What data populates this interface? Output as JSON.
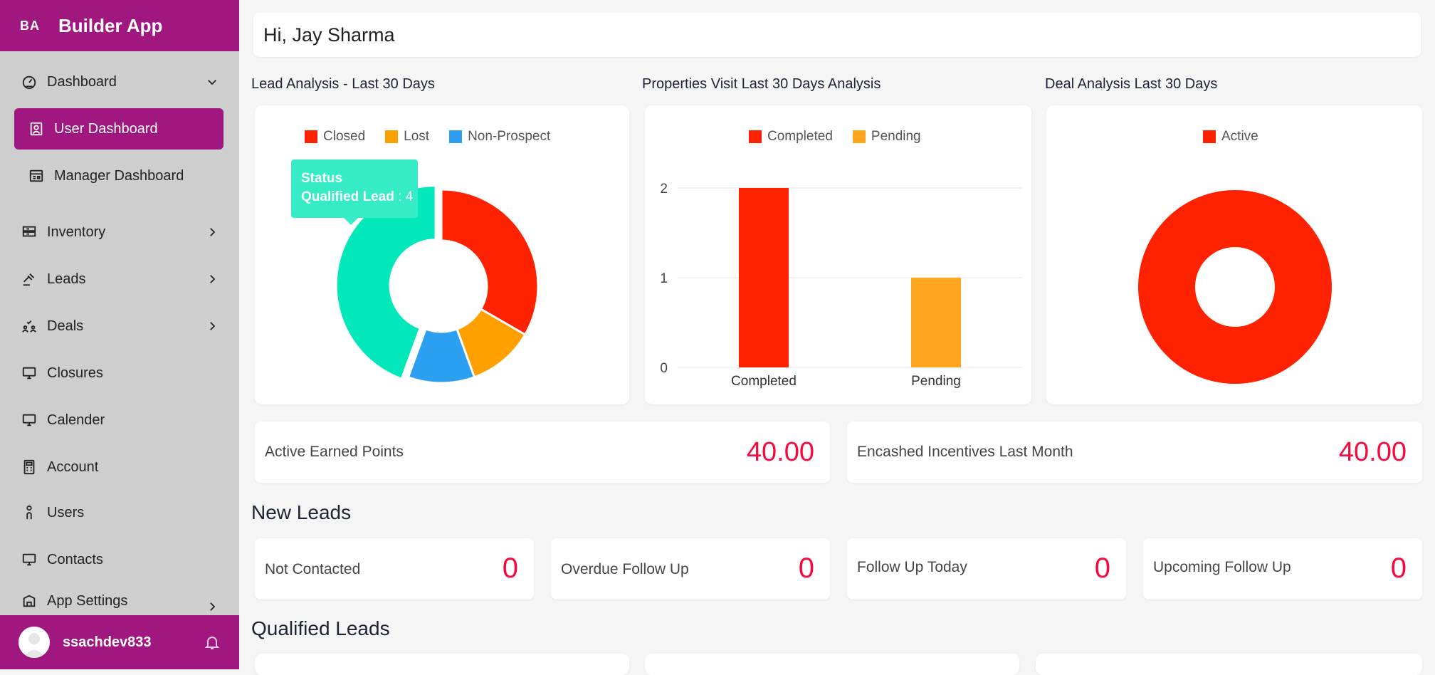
{
  "brand": {
    "abbr": "BA",
    "name": "Builder App"
  },
  "sidebar": {
    "dashboard": "Dashboard",
    "sub_items": [
      "User Dashboard",
      "Manager Dashboard"
    ],
    "items": [
      "Inventory",
      "Leads",
      "Deals",
      "Closures",
      "Calender",
      "Account",
      "Users",
      "Contacts",
      "App Settings"
    ]
  },
  "user": {
    "name": "ssachdev833"
  },
  "greeting": "Hi, Jay Sharma",
  "sections": {
    "lead_analysis": "Lead Analysis - Last 30 Days",
    "properties_visit": "Properties Visit Last 30 Days Analysis",
    "deal_analysis": "Deal Analysis Last 30 Days",
    "new_leads": "New Leads",
    "qualified_leads": "Qualified Leads"
  },
  "tooltip": {
    "title": "Status",
    "label": "Qualified Lead",
    "sep": " : ",
    "value": "4"
  },
  "colors": {
    "closed": "#ff2200",
    "lost": "#ffa000",
    "non_prospect": "#2c9ff0",
    "qualified": "#03e8ba",
    "completed": "#ff2200",
    "pending": "#ffa61e",
    "active": "#ff2200",
    "accent": "#a0177f",
    "value": "#f50a3e"
  },
  "chart_data": [
    {
      "type": "pie",
      "legend": [
        "Closed",
        "Lost",
        "Non-Prospect"
      ],
      "slices": [
        {
          "name": "Closed",
          "value": 3
        },
        {
          "name": "Lost",
          "value": 1
        },
        {
          "name": "Non-Prospect",
          "value": 1
        },
        {
          "name": "Qualified Lead",
          "value": 4
        }
      ],
      "legend_placement": "top"
    },
    {
      "type": "bar",
      "legend": [
        "Completed",
        "Pending"
      ],
      "categories": [
        "Completed",
        "Pending"
      ],
      "values": [
        2,
        1
      ],
      "yticks": [
        "0",
        "1",
        "2"
      ],
      "ylim": [
        0,
        2
      ],
      "grid": true,
      "legend_placement": "top"
    },
    {
      "type": "pie",
      "legend": [
        "Active"
      ],
      "slices": [
        {
          "name": "Active",
          "value": 1
        }
      ],
      "legend_placement": "top"
    }
  ],
  "stats": [
    {
      "label": "Active Earned Points",
      "value": "40.00"
    },
    {
      "label": "Encashed Incentives Last Month",
      "value": "40.00"
    }
  ],
  "new_leads": [
    {
      "label": "Not Contacted",
      "value": "0"
    },
    {
      "label": "Overdue Follow Up",
      "value": "0"
    },
    {
      "label": "Follow Up Today",
      "value": "0"
    },
    {
      "label": "Upcoming Follow Up",
      "value": "0"
    }
  ]
}
